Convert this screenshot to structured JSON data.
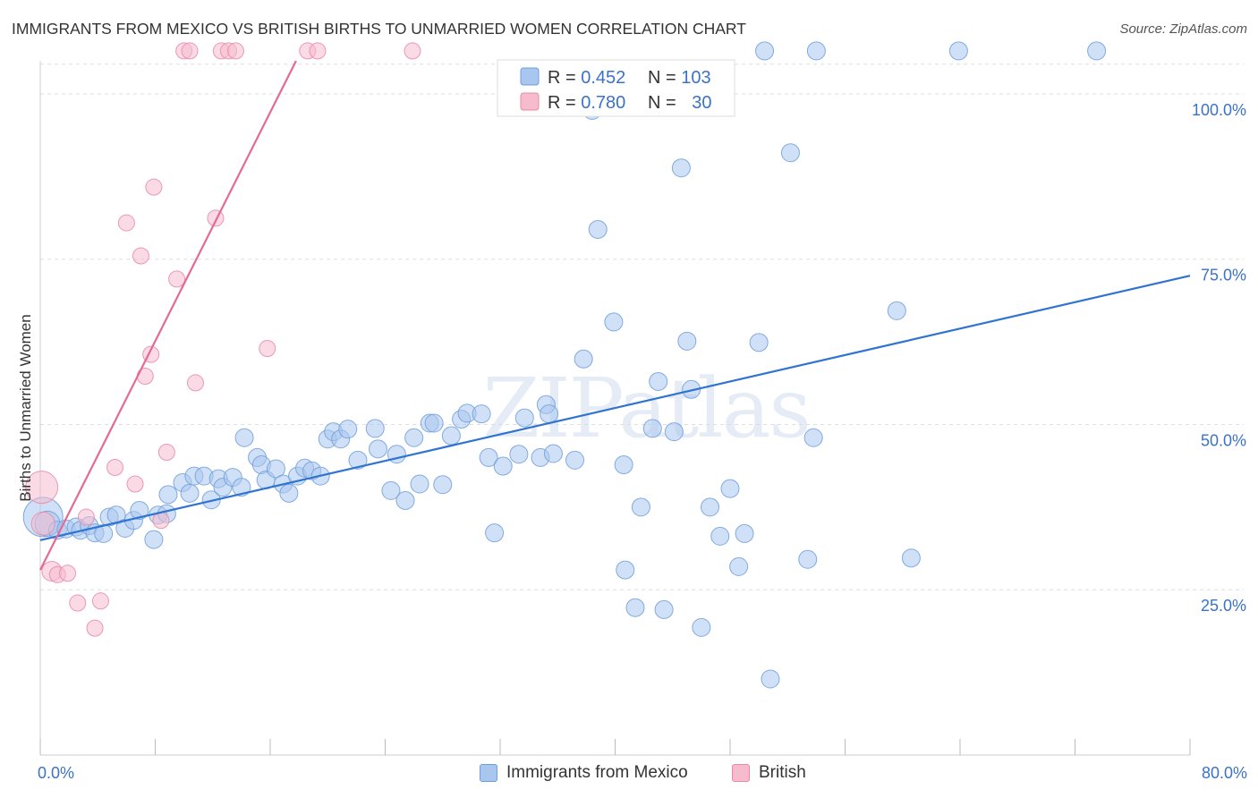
{
  "colors": {
    "blue_fill": "#a9c6ef",
    "blue_stroke": "#6f9fdb",
    "blue_line": "#2f74d0",
    "pink_fill": "#f6bccd",
    "pink_stroke": "#e88aa6",
    "pink_line": "#e46a96",
    "axis_text": "#3a72c8",
    "grid": "#dddddd"
  },
  "chart_data": {
    "type": "scatter",
    "title": "IMMIGRANTS FROM MEXICO VS BRITISH BIRTHS TO UNMARRIED WOMEN CORRELATION CHART",
    "source": "Source: ZipAtlas.com",
    "watermark": "ZIPatlas",
    "xlabel": "",
    "ylabel": "Births to Unmarried Women",
    "xlim": [
      0,
      80
    ],
    "ylim": [
      0,
      105
    ],
    "x_tick_labels": [
      "0.0%",
      "80.0%"
    ],
    "y_ticks": [
      25,
      50,
      75,
      100
    ],
    "y_tick_labels": [
      "25.0%",
      "50.0%",
      "75.0%",
      "100.0%"
    ],
    "grid": true,
    "legend_position": "top-center",
    "stats": [
      {
        "r_label": "R = ",
        "r_value": "0.452",
        "n_label": "N = ",
        "n_value": "103"
      },
      {
        "r_label": "R = ",
        "r_value": "0.780",
        "n_label": "N = ",
        "n_value": "30"
      }
    ],
    "series": [
      {
        "name": "Immigrants from Mexico",
        "color_key": "blue",
        "trend": {
          "x": [
            0,
            80
          ],
          "y": [
            32.5,
            72.5
          ]
        },
        "points": [
          [
            0.2,
            36,
            22
          ],
          [
            0.5,
            35,
            14
          ],
          [
            1.2,
            34,
            10
          ],
          [
            1.8,
            34.2,
            10
          ],
          [
            2.5,
            34.5,
            10
          ],
          [
            2.8,
            34,
            10
          ],
          [
            3.4,
            34.7,
            10
          ],
          [
            3.8,
            33.6,
            10
          ],
          [
            4.4,
            33.5,
            10
          ],
          [
            4.8,
            36,
            10
          ],
          [
            5.3,
            36.3,
            10
          ],
          [
            5.9,
            34.3,
            10
          ],
          [
            6.5,
            35.5,
            10
          ],
          [
            6.9,
            37,
            10
          ],
          [
            7.9,
            32.6,
            10
          ],
          [
            8.2,
            36.3,
            10
          ],
          [
            8.8,
            36.5,
            10
          ],
          [
            8.9,
            39.4,
            10
          ],
          [
            9.9,
            41.2,
            10
          ],
          [
            10.4,
            39.6,
            10
          ],
          [
            10.7,
            42.2,
            10
          ],
          [
            11.4,
            42.2,
            10
          ],
          [
            11.9,
            38.6,
            10
          ],
          [
            12.4,
            41.8,
            10
          ],
          [
            12.7,
            40.5,
            10
          ],
          [
            13.4,
            42,
            10
          ],
          [
            14.0,
            40.5,
            10
          ],
          [
            14.2,
            48,
            10
          ],
          [
            15.1,
            45,
            10
          ],
          [
            15.4,
            43.9,
            10
          ],
          [
            15.7,
            41.6,
            10
          ],
          [
            16.4,
            43.3,
            10
          ],
          [
            16.9,
            41,
            10
          ],
          [
            17.3,
            39.6,
            10
          ],
          [
            17.9,
            42.2,
            10
          ],
          [
            18.4,
            43.4,
            10
          ],
          [
            18.9,
            43,
            10
          ],
          [
            19.5,
            42.2,
            10
          ],
          [
            20.0,
            47.8,
            10
          ],
          [
            20.4,
            48.9,
            10
          ],
          [
            20.9,
            47.8,
            10
          ],
          [
            21.4,
            49.3,
            10
          ],
          [
            22.1,
            44.6,
            10
          ],
          [
            23.3,
            49.4,
            10
          ],
          [
            23.5,
            46.3,
            10
          ],
          [
            24.4,
            40,
            10
          ],
          [
            24.8,
            45.5,
            10
          ],
          [
            25.4,
            38.5,
            10
          ],
          [
            26.0,
            48,
            10
          ],
          [
            26.4,
            41,
            10
          ],
          [
            27.1,
            50.2,
            10
          ],
          [
            27.4,
            50.2,
            10
          ],
          [
            28.0,
            40.9,
            10
          ],
          [
            28.6,
            48.3,
            10
          ],
          [
            29.3,
            50.8,
            10
          ],
          [
            29.7,
            51.7,
            10
          ],
          [
            30.7,
            51.6,
            10
          ],
          [
            31.2,
            45,
            10
          ],
          [
            31.6,
            33.6,
            10
          ],
          [
            32.2,
            43.7,
            10
          ],
          [
            33.3,
            45.5,
            10
          ],
          [
            33.7,
            51,
            10
          ],
          [
            34.8,
            45,
            10
          ],
          [
            35.2,
            53,
            10
          ],
          [
            35.4,
            51.6,
            10
          ],
          [
            35.7,
            45.6,
            10
          ],
          [
            37.2,
            44.6,
            10
          ],
          [
            37.8,
            59.9,
            10
          ],
          [
            38.4,
            97.5,
            10
          ],
          [
            38.8,
            79.5,
            10
          ],
          [
            39.9,
            65.5,
            10
          ],
          [
            40.6,
            43.9,
            10
          ],
          [
            40.7,
            28,
            10
          ],
          [
            41.4,
            22.3,
            10
          ],
          [
            41.8,
            37.5,
            10
          ],
          [
            42.6,
            49.4,
            10
          ],
          [
            43.0,
            56.5,
            10
          ],
          [
            43.4,
            22,
            10
          ],
          [
            44.1,
            48.9,
            10
          ],
          [
            44.6,
            88.8,
            10
          ],
          [
            45.0,
            62.6,
            10
          ],
          [
            45.3,
            55.3,
            10
          ],
          [
            46.0,
            19.3,
            10
          ],
          [
            46.6,
            37.5,
            10
          ],
          [
            47.3,
            33.1,
            10
          ],
          [
            48.0,
            40.3,
            10
          ],
          [
            48.6,
            28.5,
            10
          ],
          [
            49.0,
            33.5,
            10
          ],
          [
            50.0,
            62.4,
            10
          ],
          [
            50.4,
            106.5,
            10
          ],
          [
            50.8,
            11.5,
            10
          ],
          [
            52.2,
            91.1,
            10
          ],
          [
            53.4,
            29.6,
            10
          ],
          [
            53.8,
            48,
            10
          ],
          [
            54.0,
            106.5,
            10
          ],
          [
            59.6,
            67.2,
            10
          ],
          [
            60.6,
            29.8,
            10
          ],
          [
            63.9,
            106.5,
            10
          ],
          [
            73.5,
            106.5,
            10
          ]
        ]
      },
      {
        "name": "British",
        "color_key": "pink",
        "trend": {
          "x": [
            0,
            17.8
          ],
          "y": [
            28,
            105
          ]
        },
        "points": [
          [
            0.1,
            40.5,
            18
          ],
          [
            0.2,
            35,
            13
          ],
          [
            0.8,
            27.8,
            11
          ],
          [
            1.2,
            27.3,
            9
          ],
          [
            1.9,
            27.5,
            9
          ],
          [
            2.6,
            23,
            9
          ],
          [
            3.2,
            36,
            9
          ],
          [
            3.8,
            19.2,
            9
          ],
          [
            4.2,
            23.3,
            9
          ],
          [
            5.2,
            43.5,
            9
          ],
          [
            6.0,
            80.5,
            9
          ],
          [
            6.6,
            41,
            9
          ],
          [
            7.0,
            75.5,
            9
          ],
          [
            7.3,
            57.3,
            9
          ],
          [
            7.7,
            60.6,
            9
          ],
          [
            7.9,
            85.9,
            9
          ],
          [
            8.4,
            35.5,
            9
          ],
          [
            8.8,
            45.8,
            9
          ],
          [
            9.5,
            72,
            9
          ],
          [
            10.0,
            106.5,
            9
          ],
          [
            10.4,
            106.5,
            9
          ],
          [
            10.8,
            56.3,
            9
          ],
          [
            12.2,
            81.2,
            9
          ],
          [
            12.6,
            106.5,
            9
          ],
          [
            13.1,
            106.5,
            9
          ],
          [
            13.6,
            106.5,
            9
          ],
          [
            15.8,
            61.5,
            9
          ],
          [
            18.6,
            106.5,
            9
          ],
          [
            19.3,
            106.5,
            9
          ],
          [
            25.9,
            106.5,
            9
          ]
        ]
      }
    ]
  }
}
